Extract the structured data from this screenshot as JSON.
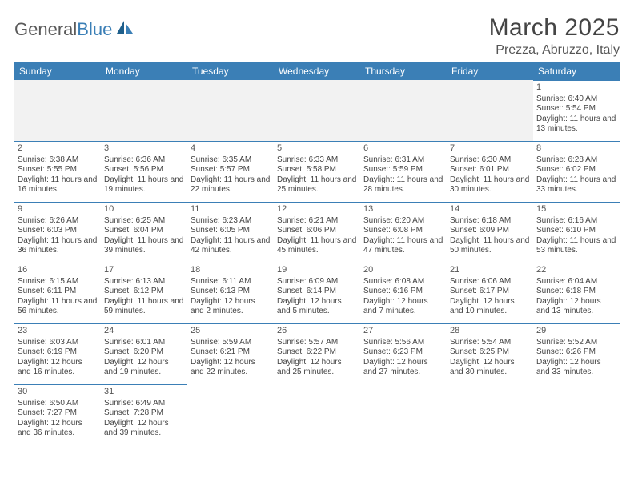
{
  "brand": {
    "name1": "General",
    "name2": "Blue"
  },
  "title": "March 2025",
  "location": "Prezza, Abruzzo, Italy",
  "colors": {
    "header_bg": "#3b7fb6",
    "header_text": "#ffffff",
    "cell_border": "#3b7fb6",
    "blank_bg": "#f2f2f2",
    "text": "#444444",
    "logo_gray": "#5a5a5a",
    "logo_blue": "#3b7fb6"
  },
  "daynames": [
    "Sunday",
    "Monday",
    "Tuesday",
    "Wednesday",
    "Thursday",
    "Friday",
    "Saturday"
  ],
  "layout": {
    "columns": 7,
    "weeks": 6,
    "first_weekday_index": 6,
    "days_in_month": 31
  },
  "days": [
    {
      "n": 1,
      "sunrise": "6:40 AM",
      "sunset": "5:54 PM",
      "daylight": "11 hours and 13 minutes."
    },
    {
      "n": 2,
      "sunrise": "6:38 AM",
      "sunset": "5:55 PM",
      "daylight": "11 hours and 16 minutes."
    },
    {
      "n": 3,
      "sunrise": "6:36 AM",
      "sunset": "5:56 PM",
      "daylight": "11 hours and 19 minutes."
    },
    {
      "n": 4,
      "sunrise": "6:35 AM",
      "sunset": "5:57 PM",
      "daylight": "11 hours and 22 minutes."
    },
    {
      "n": 5,
      "sunrise": "6:33 AM",
      "sunset": "5:58 PM",
      "daylight": "11 hours and 25 minutes."
    },
    {
      "n": 6,
      "sunrise": "6:31 AM",
      "sunset": "5:59 PM",
      "daylight": "11 hours and 28 minutes."
    },
    {
      "n": 7,
      "sunrise": "6:30 AM",
      "sunset": "6:01 PM",
      "daylight": "11 hours and 30 minutes."
    },
    {
      "n": 8,
      "sunrise": "6:28 AM",
      "sunset": "6:02 PM",
      "daylight": "11 hours and 33 minutes."
    },
    {
      "n": 9,
      "sunrise": "6:26 AM",
      "sunset": "6:03 PM",
      "daylight": "11 hours and 36 minutes."
    },
    {
      "n": 10,
      "sunrise": "6:25 AM",
      "sunset": "6:04 PM",
      "daylight": "11 hours and 39 minutes."
    },
    {
      "n": 11,
      "sunrise": "6:23 AM",
      "sunset": "6:05 PM",
      "daylight": "11 hours and 42 minutes."
    },
    {
      "n": 12,
      "sunrise": "6:21 AM",
      "sunset": "6:06 PM",
      "daylight": "11 hours and 45 minutes."
    },
    {
      "n": 13,
      "sunrise": "6:20 AM",
      "sunset": "6:08 PM",
      "daylight": "11 hours and 47 minutes."
    },
    {
      "n": 14,
      "sunrise": "6:18 AM",
      "sunset": "6:09 PM",
      "daylight": "11 hours and 50 minutes."
    },
    {
      "n": 15,
      "sunrise": "6:16 AM",
      "sunset": "6:10 PM",
      "daylight": "11 hours and 53 minutes."
    },
    {
      "n": 16,
      "sunrise": "6:15 AM",
      "sunset": "6:11 PM",
      "daylight": "11 hours and 56 minutes."
    },
    {
      "n": 17,
      "sunrise": "6:13 AM",
      "sunset": "6:12 PM",
      "daylight": "11 hours and 59 minutes."
    },
    {
      "n": 18,
      "sunrise": "6:11 AM",
      "sunset": "6:13 PM",
      "daylight": "12 hours and 2 minutes."
    },
    {
      "n": 19,
      "sunrise": "6:09 AM",
      "sunset": "6:14 PM",
      "daylight": "12 hours and 5 minutes."
    },
    {
      "n": 20,
      "sunrise": "6:08 AM",
      "sunset": "6:16 PM",
      "daylight": "12 hours and 7 minutes."
    },
    {
      "n": 21,
      "sunrise": "6:06 AM",
      "sunset": "6:17 PM",
      "daylight": "12 hours and 10 minutes."
    },
    {
      "n": 22,
      "sunrise": "6:04 AM",
      "sunset": "6:18 PM",
      "daylight": "12 hours and 13 minutes."
    },
    {
      "n": 23,
      "sunrise": "6:03 AM",
      "sunset": "6:19 PM",
      "daylight": "12 hours and 16 minutes."
    },
    {
      "n": 24,
      "sunrise": "6:01 AM",
      "sunset": "6:20 PM",
      "daylight": "12 hours and 19 minutes."
    },
    {
      "n": 25,
      "sunrise": "5:59 AM",
      "sunset": "6:21 PM",
      "daylight": "12 hours and 22 minutes."
    },
    {
      "n": 26,
      "sunrise": "5:57 AM",
      "sunset": "6:22 PM",
      "daylight": "12 hours and 25 minutes."
    },
    {
      "n": 27,
      "sunrise": "5:56 AM",
      "sunset": "6:23 PM",
      "daylight": "12 hours and 27 minutes."
    },
    {
      "n": 28,
      "sunrise": "5:54 AM",
      "sunset": "6:25 PM",
      "daylight": "12 hours and 30 minutes."
    },
    {
      "n": 29,
      "sunrise": "5:52 AM",
      "sunset": "6:26 PM",
      "daylight": "12 hours and 33 minutes."
    },
    {
      "n": 30,
      "sunrise": "6:50 AM",
      "sunset": "7:27 PM",
      "daylight": "12 hours and 36 minutes."
    },
    {
      "n": 31,
      "sunrise": "6:49 AM",
      "sunset": "7:28 PM",
      "daylight": "12 hours and 39 minutes."
    }
  ],
  "labels": {
    "sunrise": "Sunrise:",
    "sunset": "Sunset:",
    "daylight": "Daylight:"
  }
}
